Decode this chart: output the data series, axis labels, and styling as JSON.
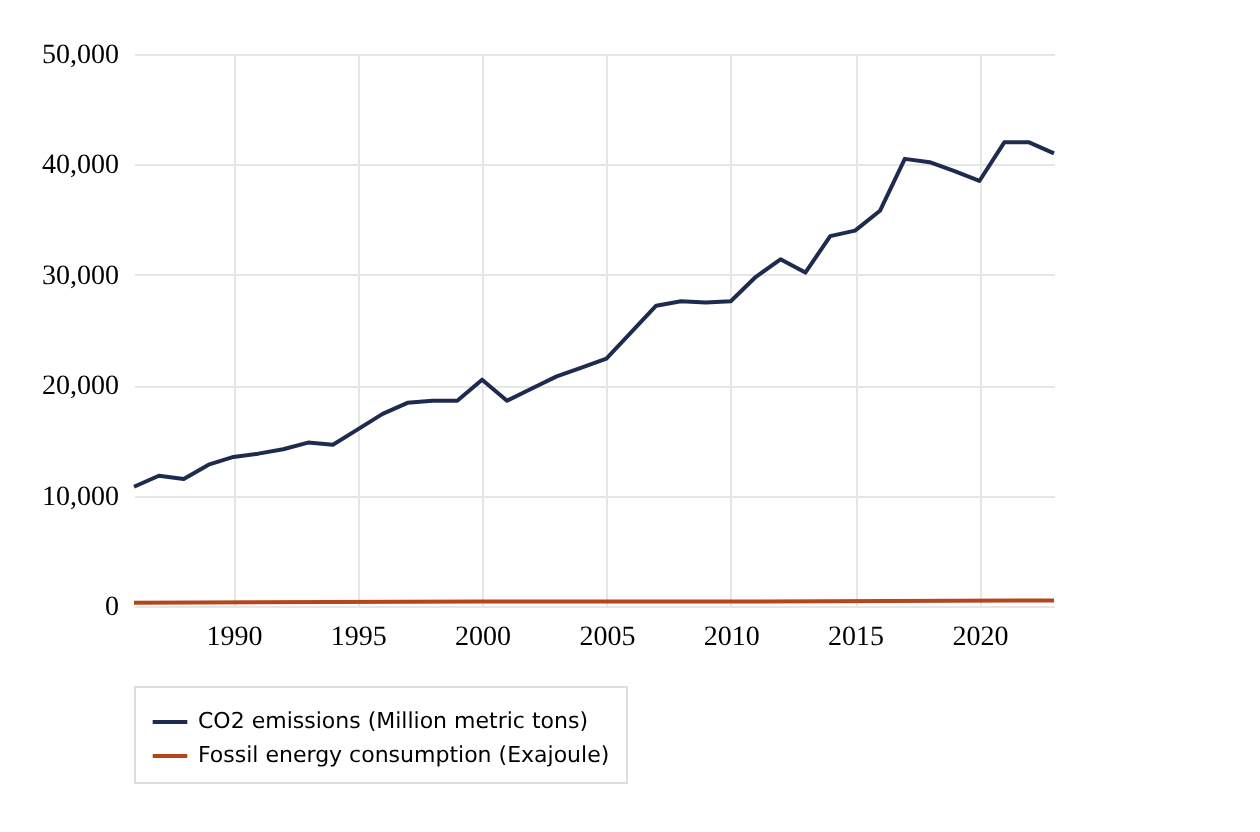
{
  "chart_data": {
    "type": "line",
    "x": [
      1986,
      1987,
      1988,
      1989,
      1990,
      1991,
      1992,
      1993,
      1994,
      1995,
      1996,
      1997,
      1998,
      1999,
      2000,
      2001,
      2002,
      2003,
      2004,
      2005,
      2006,
      2007,
      2008,
      2009,
      2010,
      2011,
      2012,
      2013,
      2014,
      2015,
      2016,
      2017,
      2018,
      2019,
      2020,
      2021,
      2022,
      2023
    ],
    "series": [
      {
        "name": "CO2 emissions (Million metric tons)",
        "color": "#1f2a4f",
        "values": [
          10800,
          11800,
          11500,
          12800,
          13500,
          13800,
          14200,
          14800,
          14600,
          16000,
          17400,
          18400,
          18600,
          18600,
          20500,
          18600,
          19700,
          20800,
          21600,
          22400,
          24800,
          27200,
          27600,
          27500,
          27600,
          29800,
          31400,
          30200,
          33500,
          34000,
          35800,
          40500,
          40200,
          39400,
          38500,
          42000,
          42000,
          41000
        ]
      },
      {
        "name": "Fossil energy consumption (Exajoule)",
        "color": "#b5451b",
        "x": [
          1986,
          2000,
          2010,
          2023
        ],
        "values": [
          300,
          400,
          400,
          500
        ]
      }
    ],
    "xlim": [
      1986,
      2023
    ],
    "xticks": [
      1990,
      1995,
      2000,
      2005,
      2010,
      2015,
      2020
    ],
    "ylim": [
      0,
      50000
    ],
    "yticks": [
      0,
      {
        "value": 10000,
        "label": "10,000"
      },
      {
        "value": 20000,
        "label": "20,000"
      },
      {
        "value": 30000,
        "label": "30,000"
      },
      {
        "value": 40000,
        "label": "40,000"
      },
      {
        "value": 50000,
        "label": "50,000"
      }
    ],
    "grid": true,
    "legend": "bottom",
    "marker": "none",
    "line_style": "solid"
  }
}
